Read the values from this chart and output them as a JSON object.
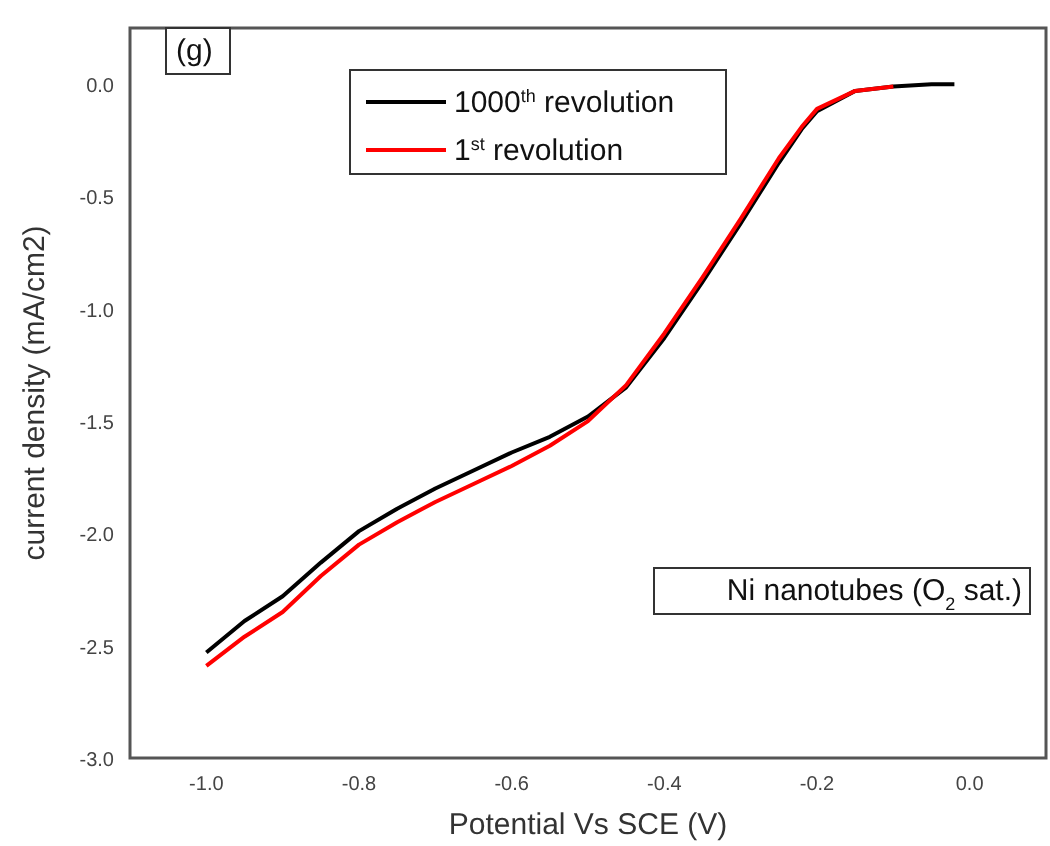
{
  "chart_data": {
    "type": "line",
    "xlabel": "Potential Vs SCE (V)",
    "ylabel": "current density (mA/cm2)",
    "xlim": [
      -1.1,
      0.1
    ],
    "ylim": [
      -3.0,
      0.25
    ],
    "xticks": [
      {
        "value": -1,
        "label": "-1.0"
      },
      {
        "value": -0.8,
        "label": "-0.8"
      },
      {
        "value": -0.6,
        "label": "-0.6"
      },
      {
        "value": -0.4,
        "label": "-0.4"
      },
      {
        "value": -0.2,
        "label": "-0.2"
      },
      {
        "value": 0,
        "label": "0.0"
      }
    ],
    "yticks": [
      {
        "value": 0,
        "label": "0.0"
      },
      {
        "value": -0.5,
        "label": "-0.5"
      },
      {
        "value": -1,
        "label": "-1.0"
      },
      {
        "value": -1.5,
        "label": "-1.5"
      },
      {
        "value": -2,
        "label": "-2.0"
      },
      {
        "value": -2.5,
        "label": "-2.5"
      },
      {
        "value": -3,
        "label": "-3.0"
      }
    ],
    "x": [
      -1.0,
      -0.95,
      -0.9,
      -0.85,
      -0.8,
      -0.75,
      -0.7,
      -0.65,
      -0.6,
      -0.55,
      -0.5,
      -0.45,
      -0.4,
      -0.35,
      -0.3,
      -0.25,
      -0.22,
      -0.2,
      -0.15,
      -0.1,
      -0.05,
      -0.02
    ],
    "series": [
      {
        "name": "1000$^{th}$ revolution",
        "color": "#000000",
        "values": [
          -2.53,
          -2.39,
          -2.28,
          -2.13,
          -1.99,
          -1.89,
          -1.8,
          -1.72,
          -1.64,
          -1.57,
          -1.48,
          -1.35,
          -1.13,
          -0.88,
          -0.62,
          -0.35,
          -0.2,
          -0.12,
          -0.03,
          -0.01,
          0.0,
          0.0
        ]
      },
      {
        "name": "1$^{st}$ revolution",
        "color": "#ff0000",
        "values": [
          -2.59,
          -2.46,
          -2.35,
          -2.19,
          -2.05,
          -1.95,
          -1.86,
          -1.78,
          -1.7,
          -1.61,
          -1.5,
          -1.34,
          -1.11,
          -0.86,
          -0.6,
          -0.33,
          -0.19,
          -0.11,
          -0.03,
          -0.01,
          null,
          null
        ]
      }
    ],
    "legend": "top left",
    "grid": false,
    "marker": "none",
    "line_style": "solid",
    "annotations": [
      "(g)",
      "Ni nanotubes (O$_{2}$ sat.)"
    ]
  }
}
